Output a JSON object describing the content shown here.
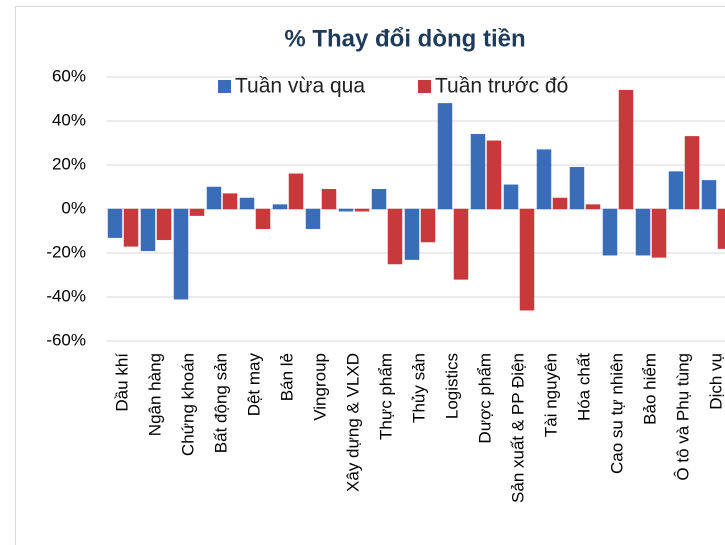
{
  "chart_data": {
    "type": "bar",
    "title": "% Thay đổi dòng tiền",
    "categories": [
      "Dầu khí",
      "Ngân hàng",
      "Chứng khoán",
      "Bất động sản",
      "Dệt may",
      "Bán lẻ",
      "Vingroup",
      "Xây dựng & VLXD",
      "Thực phẩm",
      "Thủy sản",
      "Logistics",
      "Dược phẩm",
      "Sản xuất & PP Điện",
      "Tài nguyên",
      "Hóa chất",
      "Cao su tự nhiên",
      "Bảo hiểm",
      "Ô tô và Phụ tùng",
      "Dịch vụ"
    ],
    "series": [
      {
        "name": "Tuần vừa qua",
        "color": "#3a6db8",
        "values": [
          -13,
          -19,
          -41,
          10,
          5,
          2,
          -9,
          -1,
          9,
          -23,
          48,
          34,
          11,
          27,
          19,
          -21,
          -21,
          17,
          13
        ]
      },
      {
        "name": "Tuần trước đó",
        "color": "#c7393b",
        "values": [
          -17,
          -14,
          -3,
          7,
          -9,
          16,
          9,
          -1,
          -25,
          -15,
          -32,
          31,
          -46,
          5,
          2,
          54,
          -22,
          33,
          -18
        ]
      }
    ],
    "ylim": [
      -60,
      60
    ],
    "yticks": [
      {
        "value": -60,
        "label": "-60%"
      },
      {
        "value": -40,
        "label": "-40%"
      },
      {
        "value": -20,
        "label": "-20%"
      },
      {
        "value": 0,
        "label": "0%"
      },
      {
        "value": 20,
        "label": "20%"
      },
      {
        "value": 40,
        "label": "40%"
      },
      {
        "value": 60,
        "label": "60%"
      }
    ],
    "grid": true,
    "legend": "top"
  }
}
